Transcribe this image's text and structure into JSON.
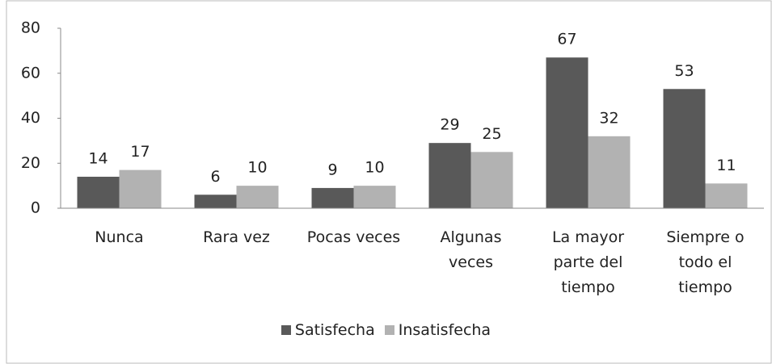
{
  "chart_data": {
    "type": "bar",
    "categories": [
      "Nunca",
      "Rara vez",
      "Pocas veces",
      "Algunas veces",
      "La mayor parte del tiempo",
      "Siempre o todo el tiempo"
    ],
    "series": [
      {
        "name": "Satisfecha",
        "color": "#595959",
        "values": [
          14,
          6,
          9,
          29,
          67,
          53
        ]
      },
      {
        "name": "Insatisfecha",
        "color": "#b2b2b2",
        "values": [
          17,
          10,
          10,
          25,
          32,
          11
        ]
      }
    ],
    "ylim": [
      0,
      80
    ],
    "yticks": [
      0,
      20,
      40,
      60,
      80
    ],
    "grid": false,
    "legend": "bottom"
  }
}
